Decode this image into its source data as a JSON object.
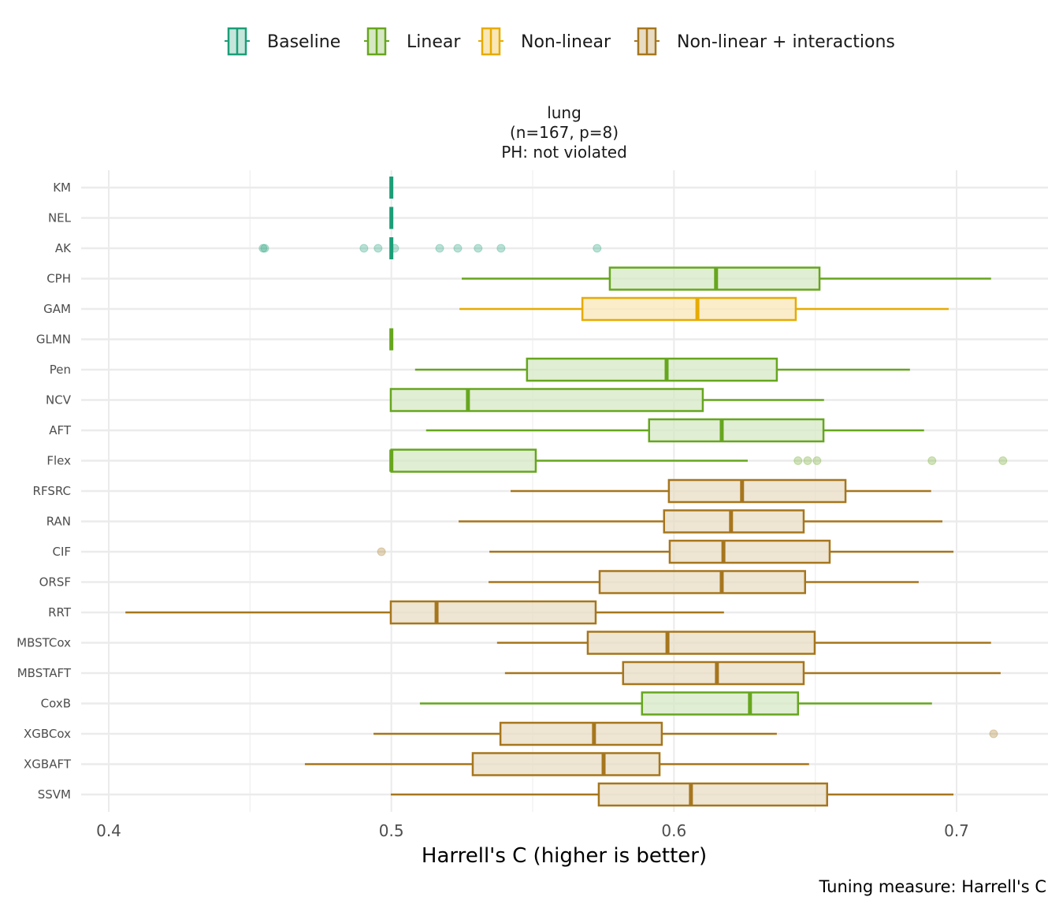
{
  "chart_data": {
    "type": "boxplot",
    "orientation": "horizontal",
    "facet_title": [
      "lung",
      "(n=167, p=8)",
      "PH: not violated"
    ],
    "xlabel": "Harrell's C (higher is better)",
    "ylabel": "",
    "caption": "Tuning measure: Harrell's C",
    "xlim": [
      0.395,
      0.732
    ],
    "x_ticks": [
      0.4,
      0.5,
      0.6,
      0.7
    ],
    "x_tick_labels": [
      "0.4",
      "0.5",
      "0.6",
      "0.7"
    ],
    "x_minor_grid": [
      0.45,
      0.55,
      0.65
    ],
    "grid": true,
    "legend_position": "top",
    "legend": [
      {
        "key": "baseline",
        "label": "Baseline",
        "color": "#1b9e77",
        "fill": "#c6e6dc"
      },
      {
        "key": "linear",
        "label": "Linear",
        "color": "#66a61e",
        "fill": "#d6e8c4"
      },
      {
        "key": "nonlinear",
        "label": "Non-linear",
        "color": "#e6ab02",
        "fill": "#f9e7b8"
      },
      {
        "key": "nonlinear_int",
        "label": "Non-linear + interactions",
        "color": "#a6761d",
        "fill": "#e8dcc4"
      }
    ],
    "categories": [
      "KM",
      "NEL",
      "AK",
      "CPH",
      "GAM",
      "GLMN",
      "Pen",
      "NCV",
      "AFT",
      "Flex",
      "RFSRC",
      "RAN",
      "CIF",
      "ORSF",
      "RRT",
      "MBSTCox",
      "MBSTAFT",
      "CoxB",
      "XGBCox",
      "XGBAFT",
      "SSVM"
    ],
    "boxes": [
      {
        "model": "KM",
        "group": "baseline",
        "lower": 0.5,
        "q1": 0.5,
        "median": 0.5,
        "q3": 0.5,
        "upper": 0.5,
        "outliers": []
      },
      {
        "model": "NEL",
        "group": "baseline",
        "lower": 0.5,
        "q1": 0.5,
        "median": 0.5,
        "q3": 0.5,
        "upper": 0.5,
        "outliers": []
      },
      {
        "model": "AK",
        "group": "baseline",
        "lower": 0.5,
        "q1": 0.5,
        "median": 0.5,
        "q3": 0.5,
        "upper": 0.5,
        "outliers": [
          0.4546,
          0.4552,
          0.4903,
          0.4953,
          0.5012,
          0.5171,
          0.5235,
          0.5307,
          0.5388,
          0.5728
        ]
      },
      {
        "model": "CPH",
        "group": "linear",
        "lower": 0.5249,
        "q1": 0.5773,
        "median": 0.6149,
        "q3": 0.6515,
        "upper": 0.7122,
        "outliers": []
      },
      {
        "model": "GAM",
        "group": "nonlinear",
        "lower": 0.5241,
        "q1": 0.5676,
        "median": 0.6083,
        "q3": 0.6431,
        "upper": 0.6972,
        "outliers": []
      },
      {
        "model": "GLMN",
        "group": "linear",
        "lower": 0.5,
        "q1": 0.5,
        "median": 0.5,
        "q3": 0.5,
        "upper": 0.5,
        "outliers": []
      },
      {
        "model": "Pen",
        "group": "linear",
        "lower": 0.5084,
        "q1": 0.548,
        "median": 0.5974,
        "q3": 0.6364,
        "upper": 0.6835,
        "outliers": []
      },
      {
        "model": "NCV",
        "group": "linear",
        "lower": 0.4998,
        "q1": 0.4998,
        "median": 0.5271,
        "q3": 0.6102,
        "upper": 0.6531,
        "outliers": []
      },
      {
        "model": "AFT",
        "group": "linear",
        "lower": 0.5123,
        "q1": 0.5912,
        "median": 0.6169,
        "q3": 0.6529,
        "upper": 0.6885,
        "outliers": []
      },
      {
        "model": "Flex",
        "group": "linear",
        "lower": 0.5,
        "q1": 0.5,
        "median": 0.5,
        "q3": 0.5511,
        "upper": 0.6261,
        "outliers": [
          0.6439,
          0.6473,
          0.6506,
          0.6913,
          0.7164
        ]
      },
      {
        "model": "RFSRC",
        "group": "nonlinear_int",
        "lower": 0.5422,
        "q1": 0.5982,
        "median": 0.6241,
        "q3": 0.6607,
        "upper": 0.691,
        "outliers": []
      },
      {
        "model": "RAN",
        "group": "nonlinear_int",
        "lower": 0.5238,
        "q1": 0.5965,
        "median": 0.6202,
        "q3": 0.6459,
        "upper": 0.695,
        "outliers": []
      },
      {
        "model": "CIF",
        "group": "nonlinear_int",
        "lower": 0.5347,
        "q1": 0.5985,
        "median": 0.6175,
        "q3": 0.6551,
        "upper": 0.6989,
        "outliers": [
          0.4965
        ]
      },
      {
        "model": "ORSF",
        "group": "nonlinear_int",
        "lower": 0.5344,
        "q1": 0.5737,
        "median": 0.6169,
        "q3": 0.6464,
        "upper": 0.6866,
        "outliers": []
      },
      {
        "model": "RRT",
        "group": "nonlinear_int",
        "lower": 0.4059,
        "q1": 0.4998,
        "median": 0.516,
        "q3": 0.5723,
        "upper": 0.6177,
        "outliers": []
      },
      {
        "model": "MBSTCox",
        "group": "nonlinear_int",
        "lower": 0.5374,
        "q1": 0.5695,
        "median": 0.5977,
        "q3": 0.6498,
        "upper": 0.7122,
        "outliers": []
      },
      {
        "model": "MBSTAFT",
        "group": "nonlinear_int",
        "lower": 0.5402,
        "q1": 0.582,
        "median": 0.6152,
        "q3": 0.6459,
        "upper": 0.7156,
        "outliers": []
      },
      {
        "model": "CoxB",
        "group": "linear",
        "lower": 0.5101,
        "q1": 0.5887,
        "median": 0.6269,
        "q3": 0.6439,
        "upper": 0.6913,
        "outliers": []
      },
      {
        "model": "XGBCox",
        "group": "nonlinear_int",
        "lower": 0.4937,
        "q1": 0.5386,
        "median": 0.5717,
        "q3": 0.5957,
        "upper": 0.6364,
        "outliers": [
          0.7131
        ]
      },
      {
        "model": "XGBAFT",
        "group": "nonlinear_int",
        "lower": 0.4694,
        "q1": 0.5288,
        "median": 0.5751,
        "q3": 0.5949,
        "upper": 0.6478,
        "outliers": []
      },
      {
        "model": "SSVM",
        "group": "nonlinear_int",
        "lower": 0.4998,
        "q1": 0.5734,
        "median": 0.606,
        "q3": 0.6542,
        "upper": 0.6989,
        "outliers": []
      }
    ]
  }
}
